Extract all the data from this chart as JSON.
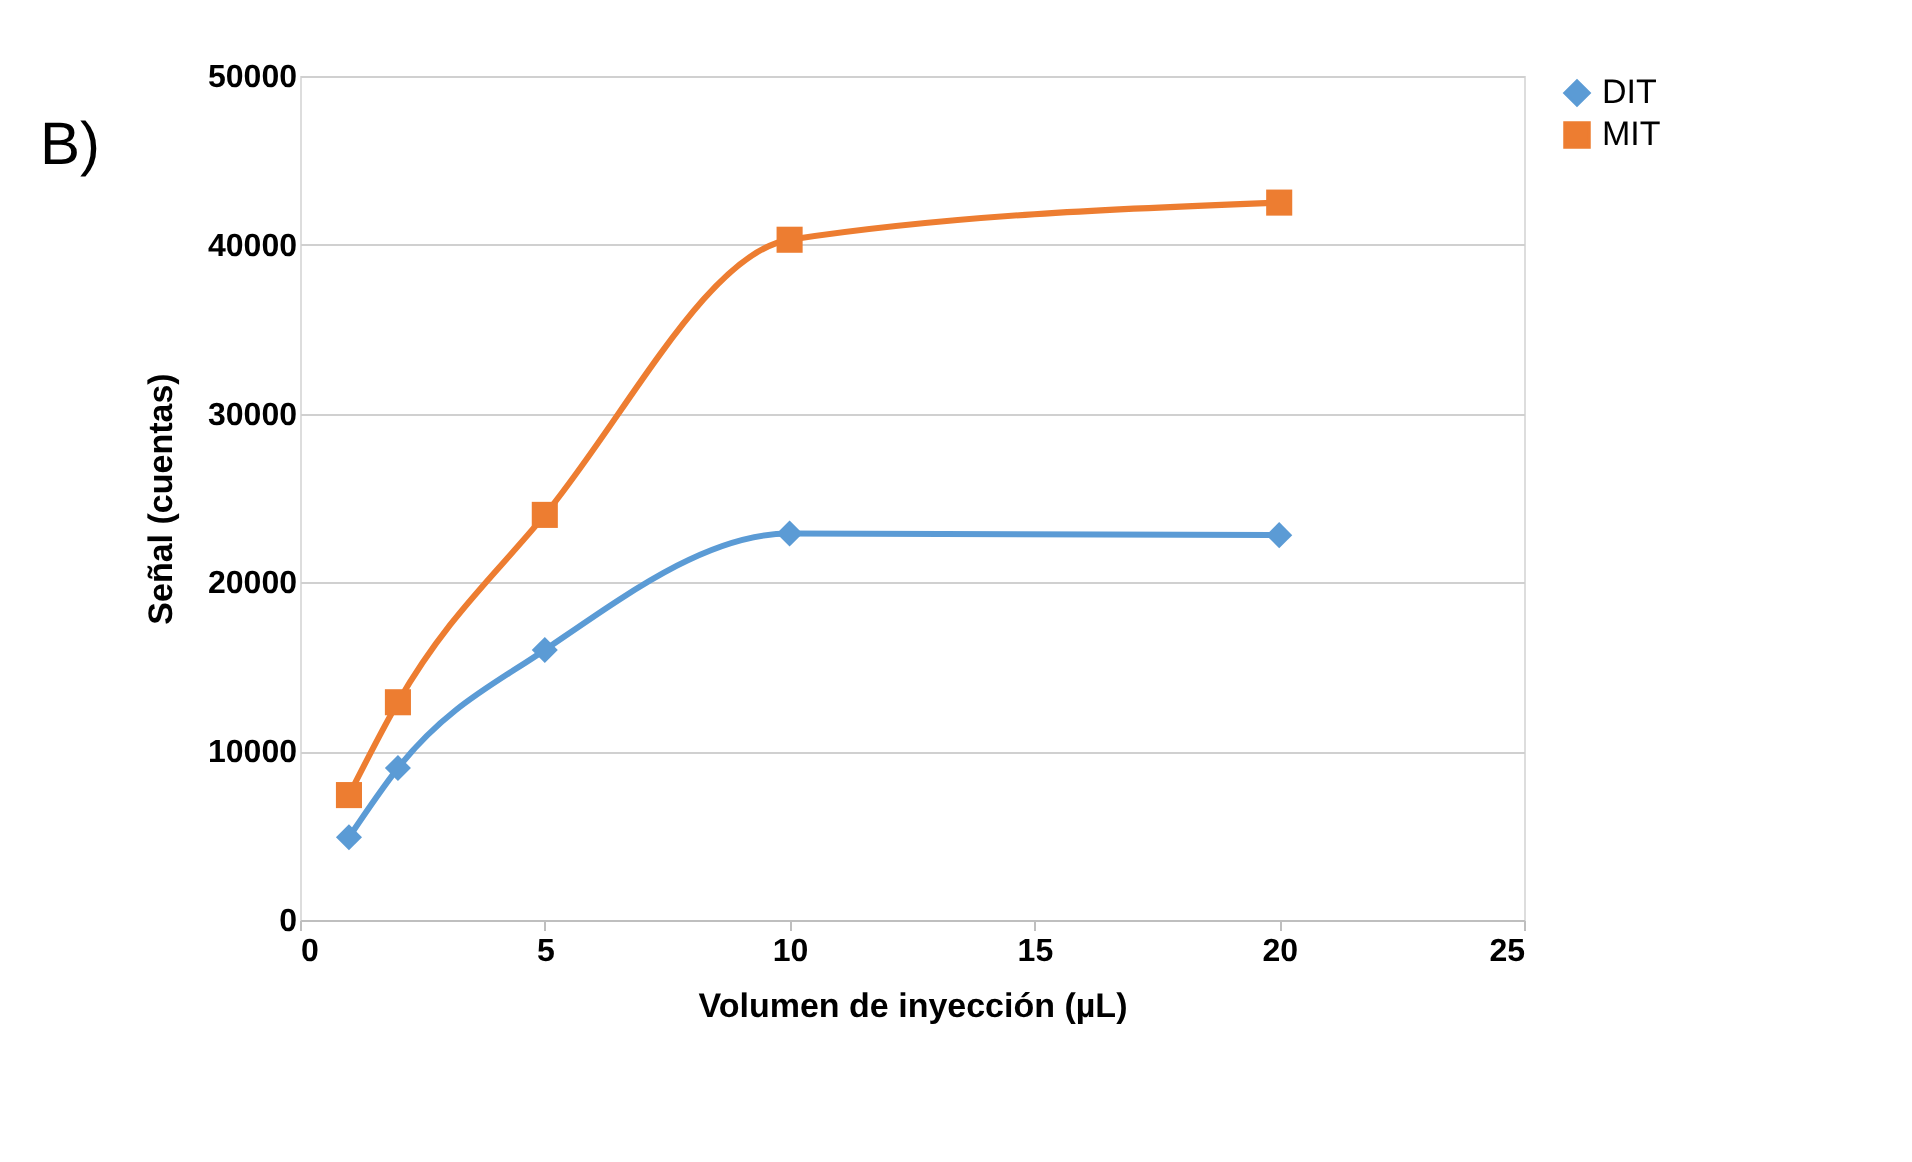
{
  "chart_data": {
    "type": "line",
    "xlabel": "Volumen de inyección (µL)",
    "ylabel": "Señal (cuentas)",
    "annotations": [
      "B)"
    ],
    "xlim": [
      0,
      25
    ],
    "xticks": [
      0,
      5,
      10,
      15,
      20,
      25
    ],
    "ylim": [
      0,
      50000
    ],
    "yticks": [
      0,
      10000,
      20000,
      30000,
      40000,
      50000
    ],
    "grid": "y",
    "legend": "right",
    "series": [
      {
        "name": "DIT",
        "color": "#5b9bd5",
        "marker": "diamond",
        "x": [
          1,
          2,
          5,
          10,
          20
        ],
        "values": [
          4900,
          9000,
          16000,
          22900,
          22800
        ]
      },
      {
        "name": "MIT",
        "color": "#ed7d31",
        "marker": "square",
        "x": [
          1,
          2,
          5,
          10,
          20
        ],
        "values": [
          7400,
          12900,
          24000,
          40300,
          42500
        ]
      }
    ]
  }
}
